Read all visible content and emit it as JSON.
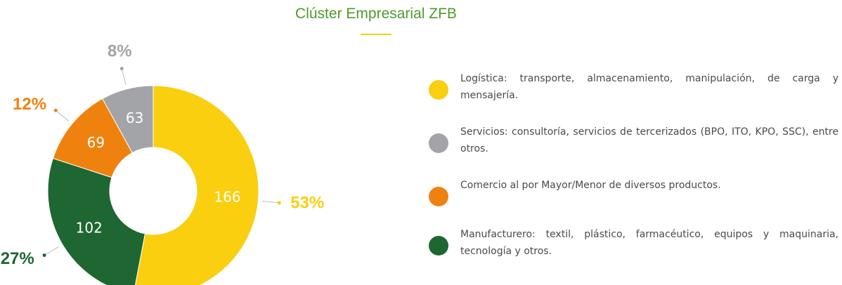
{
  "chart_data": {
    "type": "pie",
    "title": "Clúster Empresarial ZFB",
    "categories": [
      "Logística: transporte, almacenamiento, manipulación, de carga y mensajería.",
      "Servicios: consultoría, servicios de tercerizados (BPO, ITO, KPO, SSC), entre otros.",
      "Comercio al por Mayor/Menor de diversos productos.",
      "Manufacturero: textil, plástico, farmacéutico, equipos y maquinaria, tecnología y otros."
    ],
    "values": [
      53,
      8,
      12,
      27
    ],
    "value_labels": [
      "53%",
      "8%",
      "12%",
      "27%"
    ],
    "counts": [
      166,
      63,
      69,
      102
    ],
    "colors": [
      "#f9cf0f",
      "#a3a4a7",
      "#ef820f",
      "#1e6632"
    ]
  }
}
